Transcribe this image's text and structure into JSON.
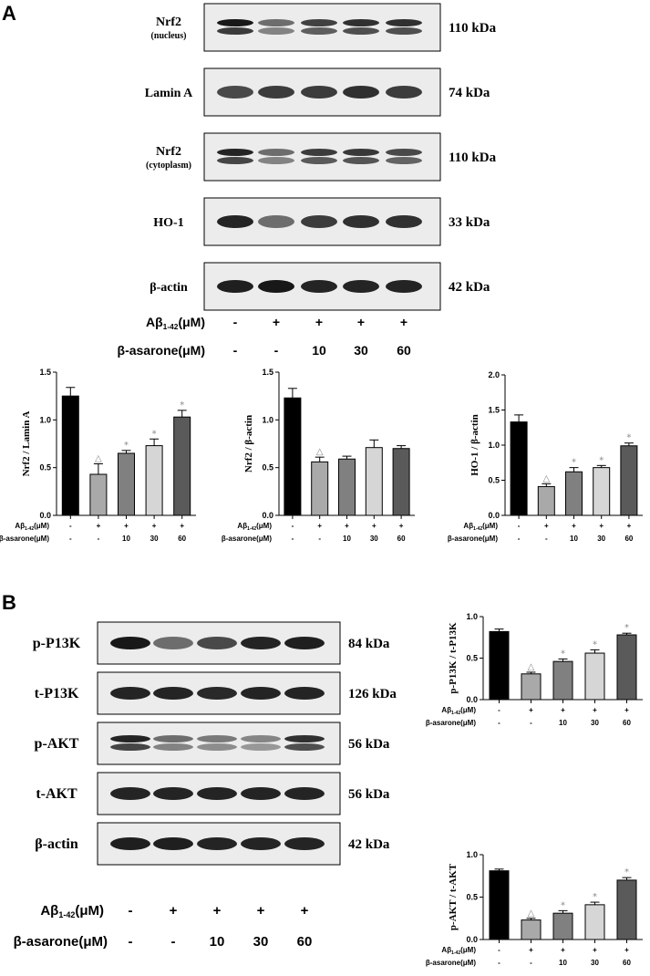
{
  "panels": [
    {
      "letter": "A"
    },
    {
      "letter": "B"
    }
  ],
  "panelA": {
    "blots": [
      {
        "label": "Nrf2",
        "sublabel": "(nucleus)",
        "kda": "110 kDa",
        "intensities": [
          0.95,
          0.6,
          0.78,
          0.85,
          0.85
        ],
        "doublet": true
      },
      {
        "label": "Lamin A",
        "sublabel": "",
        "kda": "74 kDa",
        "intensities": [
          0.75,
          0.8,
          0.8,
          0.85,
          0.8
        ],
        "doublet": false
      },
      {
        "label": "Nrf2",
        "sublabel": "(cytoplasm)",
        "kda": "110 kDa",
        "intensities": [
          0.9,
          0.6,
          0.8,
          0.82,
          0.75
        ],
        "doublet": true
      },
      {
        "label": "HO-1",
        "sublabel": "",
        "kda": "33 kDa",
        "intensities": [
          0.9,
          0.6,
          0.8,
          0.85,
          0.85
        ],
        "doublet": false
      },
      {
        "label": "β-actin",
        "sublabel": "",
        "kda": "42 kDa",
        "intensities": [
          0.92,
          0.95,
          0.9,
          0.9,
          0.9
        ],
        "doublet": false
      }
    ],
    "conditions": {
      "abeta_label": "Aβ",
      "abeta_sub": "1-42",
      "abeta_unit": "(μM)",
      "abeta_values": [
        "-",
        "+",
        "+",
        "+",
        "+"
      ],
      "asarone_label": "β-asarone(μM)",
      "asarone_values": [
        "-",
        "-",
        "10",
        "30",
        "60"
      ]
    }
  },
  "panelB": {
    "blots": [
      {
        "label": "p-P13K",
        "kda": "84 kDa",
        "intensities": [
          0.95,
          0.6,
          0.75,
          0.9,
          0.92
        ],
        "doublet": false
      },
      {
        "label": "t-P13K",
        "kda": "126 kDa",
        "intensities": [
          0.9,
          0.9,
          0.88,
          0.9,
          0.9
        ],
        "doublet": false
      },
      {
        "label": "p-AKT",
        "kda": "56 kDa",
        "intensities": [
          0.9,
          0.6,
          0.55,
          0.5,
          0.85
        ],
        "doublet": true
      },
      {
        "label": "t-AKT",
        "kda": "56 kDa",
        "intensities": [
          0.9,
          0.9,
          0.9,
          0.9,
          0.9
        ],
        "doublet": false
      },
      {
        "label": "β-actin",
        "kda": "42 kDa",
        "intensities": [
          0.92,
          0.92,
          0.9,
          0.9,
          0.9
        ],
        "doublet": false
      }
    ],
    "conditions": {
      "abeta_label": "Aβ",
      "abeta_sub": "1-42",
      "abeta_unit": "(μM)",
      "abeta_values": [
        "-",
        "+",
        "+",
        "+",
        "+"
      ],
      "asarone_label": "β-asarone(μM)",
      "asarone_values": [
        "-",
        "-",
        "10",
        "30",
        "60"
      ]
    }
  },
  "chart_data": [
    {
      "type": "bar",
      "id": "nrf2-lamin",
      "ylabel": "Nrf2 / Lamin A",
      "ylim": [
        0,
        1.5
      ],
      "yticks": [
        "0.0",
        "0.5",
        "1.0",
        "1.5"
      ],
      "values": [
        1.25,
        0.43,
        0.65,
        0.73,
        1.03
      ],
      "errors": [
        0.09,
        0.11,
        0.03,
        0.07,
        0.07
      ],
      "marks": [
        "",
        "△",
        "*",
        "*",
        "*"
      ],
      "colors": [
        "#000000",
        "#a9a9a9",
        "#808080",
        "#d6d6d6",
        "#5a5a5a"
      ],
      "x_rows": {
        "abeta": [
          "-",
          "+",
          "+",
          "+",
          "+"
        ],
        "asarone": [
          "-",
          "-",
          "10",
          "30",
          "60"
        ]
      }
    },
    {
      "type": "bar",
      "id": "nrf2-actin",
      "ylabel": "Nrf2 / β-actin",
      "ylim": [
        0,
        1.5
      ],
      "yticks": [
        "0.0",
        "0.5",
        "1.0",
        "1.5"
      ],
      "values": [
        1.23,
        0.56,
        0.59,
        0.71,
        0.7
      ],
      "errors": [
        0.1,
        0.05,
        0.03,
        0.08,
        0.03
      ],
      "marks": [
        "",
        "△",
        "",
        "",
        ""
      ],
      "colors": [
        "#000000",
        "#a9a9a9",
        "#808080",
        "#d6d6d6",
        "#5a5a5a"
      ],
      "x_rows": {
        "abeta": [
          "-",
          "+",
          "+",
          "+",
          "+"
        ],
        "asarone": [
          "-",
          "-",
          "10",
          "30",
          "60"
        ]
      }
    },
    {
      "type": "bar",
      "id": "ho1-actin",
      "ylabel": "HO-1 / β-actin",
      "ylim": [
        0,
        2.0
      ],
      "yticks": [
        "0.0",
        "0.5",
        "1.0",
        "1.5",
        "2.0"
      ],
      "values": [
        1.33,
        0.41,
        0.62,
        0.68,
        0.99
      ],
      "errors": [
        0.1,
        0.04,
        0.06,
        0.03,
        0.04
      ],
      "marks": [
        "",
        "△",
        "*",
        "*",
        "*"
      ],
      "colors": [
        "#000000",
        "#a9a9a9",
        "#808080",
        "#d6d6d6",
        "#5a5a5a"
      ],
      "x_rows": {
        "abeta": [
          "-",
          "+",
          "+",
          "+",
          "+"
        ],
        "asarone": [
          "-",
          "-",
          "10",
          "30",
          "60"
        ]
      }
    },
    {
      "type": "bar",
      "id": "pp13k-tp13k",
      "ylabel": "p-P13K / t-P13K",
      "ylim": [
        0,
        1.0
      ],
      "yticks": [
        "0.0",
        "0.5",
        "1.0"
      ],
      "values": [
        0.82,
        0.31,
        0.46,
        0.56,
        0.78
      ],
      "errors": [
        0.03,
        0.02,
        0.03,
        0.04,
        0.02
      ],
      "marks": [
        "",
        "△",
        "*",
        "*",
        "*"
      ],
      "colors": [
        "#000000",
        "#a9a9a9",
        "#808080",
        "#d6d6d6",
        "#5a5a5a"
      ],
      "x_rows": {
        "abeta": [
          "-",
          "+",
          "+",
          "+",
          "+"
        ],
        "asarone": [
          "-",
          "-",
          "10",
          "30",
          "60"
        ]
      }
    },
    {
      "type": "bar",
      "id": "pakt-takt",
      "ylabel": "p-AKT / t-AKT",
      "ylim": [
        0,
        1.0
      ],
      "yticks": [
        "0.0",
        "0.5",
        "1.0"
      ],
      "values": [
        0.81,
        0.23,
        0.31,
        0.41,
        0.7
      ],
      "errors": [
        0.02,
        0.02,
        0.03,
        0.03,
        0.03
      ],
      "marks": [
        "",
        "△",
        "*",
        "*",
        "*"
      ],
      "colors": [
        "#000000",
        "#a9a9a9",
        "#808080",
        "#d6d6d6",
        "#5a5a5a"
      ],
      "x_rows": {
        "abeta": [
          "-",
          "+",
          "+",
          "+",
          "+"
        ],
        "asarone": [
          "-",
          "-",
          "10",
          "30",
          "60"
        ]
      }
    }
  ]
}
